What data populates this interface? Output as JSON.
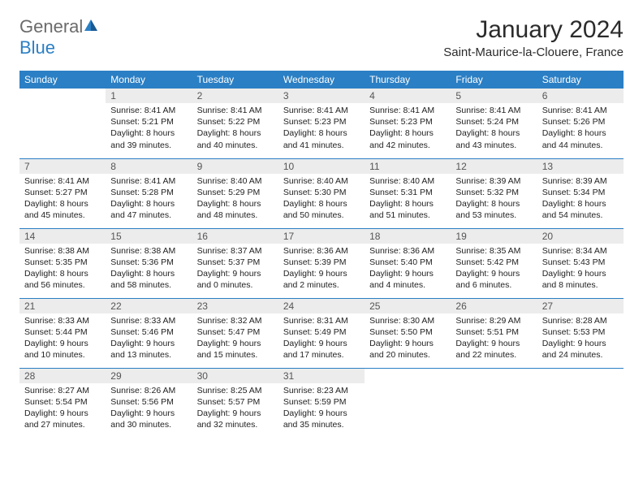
{
  "logo": {
    "text1": "General",
    "text2": "Blue"
  },
  "title": "January 2024",
  "location": "Saint-Maurice-la-Clouere, France",
  "header_bg": "#2b7fc4",
  "header_text_color": "#ffffff",
  "daynum_bg": "#ececec",
  "days_of_week": [
    "Sunday",
    "Monday",
    "Tuesday",
    "Wednesday",
    "Thursday",
    "Friday",
    "Saturday"
  ],
  "month_start_weekday": 1,
  "days_in_month": 31,
  "cells": {
    "1": {
      "sunrise": "8:41 AM",
      "sunset": "5:21 PM",
      "daylight_h": 8,
      "daylight_m": 39
    },
    "2": {
      "sunrise": "8:41 AM",
      "sunset": "5:22 PM",
      "daylight_h": 8,
      "daylight_m": 40
    },
    "3": {
      "sunrise": "8:41 AM",
      "sunset": "5:23 PM",
      "daylight_h": 8,
      "daylight_m": 41
    },
    "4": {
      "sunrise": "8:41 AM",
      "sunset": "5:23 PM",
      "daylight_h": 8,
      "daylight_m": 42
    },
    "5": {
      "sunrise": "8:41 AM",
      "sunset": "5:24 PM",
      "daylight_h": 8,
      "daylight_m": 43
    },
    "6": {
      "sunrise": "8:41 AM",
      "sunset": "5:26 PM",
      "daylight_h": 8,
      "daylight_m": 44
    },
    "7": {
      "sunrise": "8:41 AM",
      "sunset": "5:27 PM",
      "daylight_h": 8,
      "daylight_m": 45
    },
    "8": {
      "sunrise": "8:41 AM",
      "sunset": "5:28 PM",
      "daylight_h": 8,
      "daylight_m": 47
    },
    "9": {
      "sunrise": "8:40 AM",
      "sunset": "5:29 PM",
      "daylight_h": 8,
      "daylight_m": 48
    },
    "10": {
      "sunrise": "8:40 AM",
      "sunset": "5:30 PM",
      "daylight_h": 8,
      "daylight_m": 50
    },
    "11": {
      "sunrise": "8:40 AM",
      "sunset": "5:31 PM",
      "daylight_h": 8,
      "daylight_m": 51
    },
    "12": {
      "sunrise": "8:39 AM",
      "sunset": "5:32 PM",
      "daylight_h": 8,
      "daylight_m": 53
    },
    "13": {
      "sunrise": "8:39 AM",
      "sunset": "5:34 PM",
      "daylight_h": 8,
      "daylight_m": 54
    },
    "14": {
      "sunrise": "8:38 AM",
      "sunset": "5:35 PM",
      "daylight_h": 8,
      "daylight_m": 56
    },
    "15": {
      "sunrise": "8:38 AM",
      "sunset": "5:36 PM",
      "daylight_h": 8,
      "daylight_m": 58
    },
    "16": {
      "sunrise": "8:37 AM",
      "sunset": "5:37 PM",
      "daylight_h": 9,
      "daylight_m": 0
    },
    "17": {
      "sunrise": "8:36 AM",
      "sunset": "5:39 PM",
      "daylight_h": 9,
      "daylight_m": 2
    },
    "18": {
      "sunrise": "8:36 AM",
      "sunset": "5:40 PM",
      "daylight_h": 9,
      "daylight_m": 4
    },
    "19": {
      "sunrise": "8:35 AM",
      "sunset": "5:42 PM",
      "daylight_h": 9,
      "daylight_m": 6
    },
    "20": {
      "sunrise": "8:34 AM",
      "sunset": "5:43 PM",
      "daylight_h": 9,
      "daylight_m": 8
    },
    "21": {
      "sunrise": "8:33 AM",
      "sunset": "5:44 PM",
      "daylight_h": 9,
      "daylight_m": 10
    },
    "22": {
      "sunrise": "8:33 AM",
      "sunset": "5:46 PM",
      "daylight_h": 9,
      "daylight_m": 13
    },
    "23": {
      "sunrise": "8:32 AM",
      "sunset": "5:47 PM",
      "daylight_h": 9,
      "daylight_m": 15
    },
    "24": {
      "sunrise": "8:31 AM",
      "sunset": "5:49 PM",
      "daylight_h": 9,
      "daylight_m": 17
    },
    "25": {
      "sunrise": "8:30 AM",
      "sunset": "5:50 PM",
      "daylight_h": 9,
      "daylight_m": 20
    },
    "26": {
      "sunrise": "8:29 AM",
      "sunset": "5:51 PM",
      "daylight_h": 9,
      "daylight_m": 22
    },
    "27": {
      "sunrise": "8:28 AM",
      "sunset": "5:53 PM",
      "daylight_h": 9,
      "daylight_m": 24
    },
    "28": {
      "sunrise": "8:27 AM",
      "sunset": "5:54 PM",
      "daylight_h": 9,
      "daylight_m": 27
    },
    "29": {
      "sunrise": "8:26 AM",
      "sunset": "5:56 PM",
      "daylight_h": 9,
      "daylight_m": 30
    },
    "30": {
      "sunrise": "8:25 AM",
      "sunset": "5:57 PM",
      "daylight_h": 9,
      "daylight_m": 32
    },
    "31": {
      "sunrise": "8:23 AM",
      "sunset": "5:59 PM",
      "daylight_h": 9,
      "daylight_m": 35
    }
  },
  "labels": {
    "sunrise": "Sunrise:",
    "sunset": "Sunset:",
    "daylight": "Daylight:",
    "hours": "hours",
    "and": "and",
    "minutes": "minutes."
  }
}
